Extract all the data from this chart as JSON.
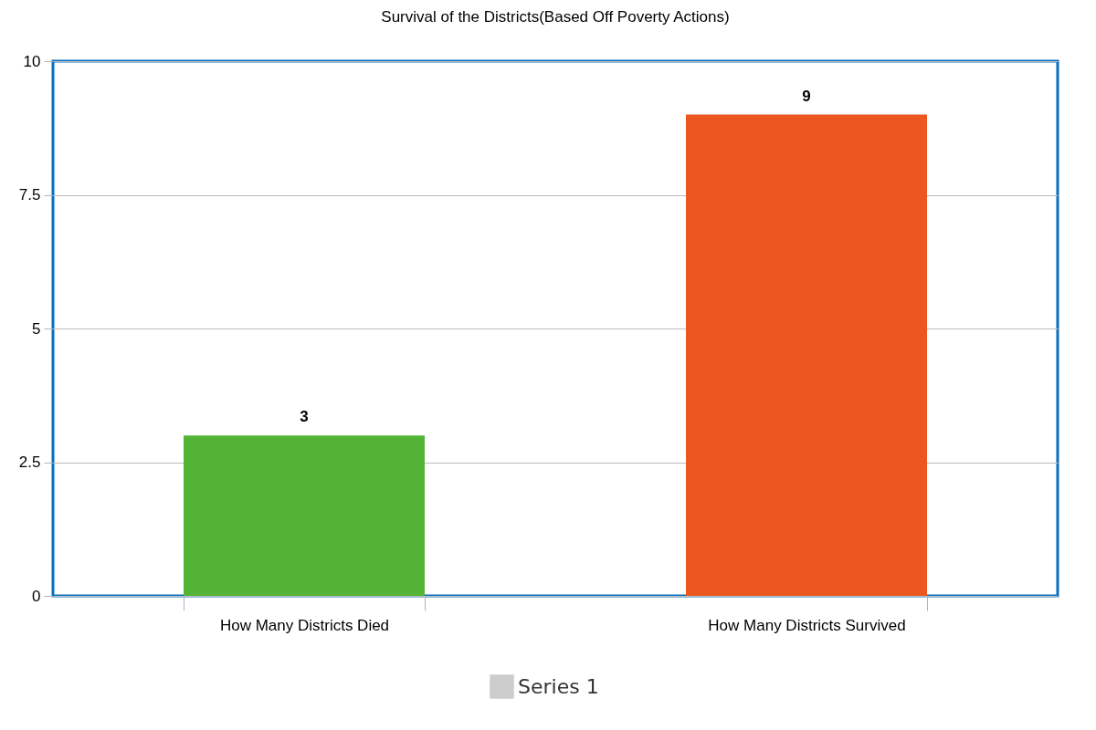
{
  "chart_data": {
    "type": "bar",
    "title": "Survival of the Districts(Based Off Poverty Actions)",
    "categories": [
      "How Many Districts Died",
      "How Many Districts Survived"
    ],
    "series": [
      {
        "name": "Series 1",
        "color": "#cccccc",
        "colors": [
          "#52b335",
          "#eb571f"
        ],
        "values": [
          3,
          9
        ]
      }
    ],
    "ylim": [
      0,
      10
    ],
    "yticks": [
      0,
      2.5,
      5,
      7.5,
      10
    ],
    "grid": "y",
    "legend": "bottom",
    "data_labels": true
  }
}
